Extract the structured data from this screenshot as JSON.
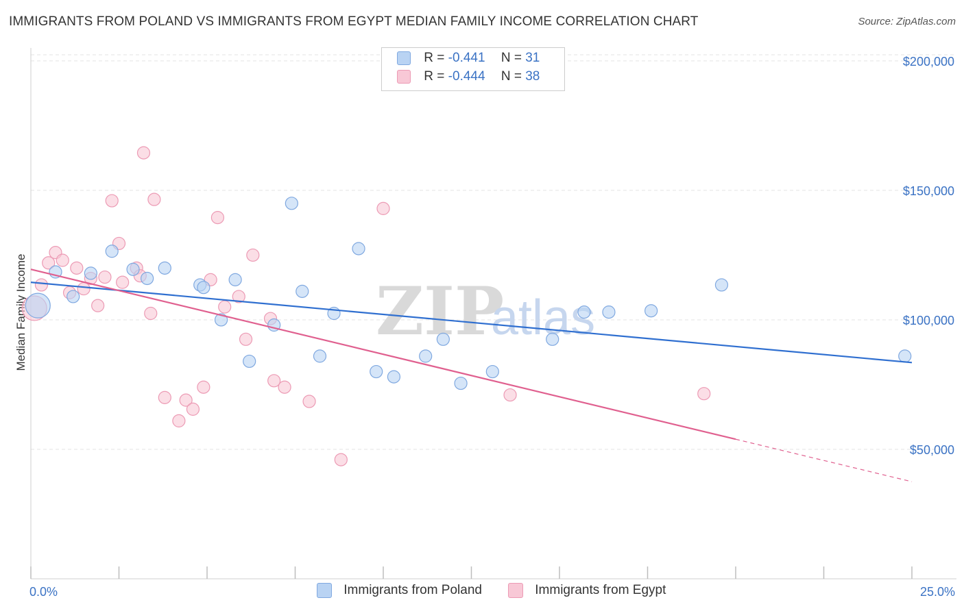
{
  "title": "IMMIGRANTS FROM POLAND VS IMMIGRANTS FROM EGYPT MEDIAN FAMILY INCOME CORRELATION CHART",
  "source": "Source: ZipAtlas.com",
  "watermark": {
    "zip": "ZIP",
    "atlas": "atlas"
  },
  "colors": {
    "poland_fill": "#b9d3f3",
    "poland_stroke": "#7fa8e0",
    "poland_line": "#2f6fd0",
    "egypt_fill": "#f8c8d6",
    "egypt_stroke": "#ec9ab4",
    "egypt_line": "#e0608f",
    "grid": "#e3e3e3",
    "tick_text": "#3a72c4"
  },
  "legend": {
    "rows": [
      {
        "r_label": "R =",
        "r_value": "-0.441",
        "n_label": "N =",
        "n_value": "31"
      },
      {
        "r_label": "R =",
        "r_value": "-0.444",
        "n_label": "N =",
        "n_value": "38"
      }
    ]
  },
  "chart_data": {
    "type": "scatter",
    "title": "IMMIGRANTS FROM POLAND VS IMMIGRANTS FROM EGYPT MEDIAN FAMILY INCOME CORRELATION CHART",
    "xlabel": "",
    "ylabel": "Median Family Income",
    "xlim": [
      0,
      25
    ],
    "ylim": [
      0,
      205000
    ],
    "x_tick_labels": [
      "0.0%",
      "25.0%"
    ],
    "y_ticks": [
      50000,
      100000,
      150000,
      200000
    ],
    "y_tick_labels": [
      "$50,000",
      "$100,000",
      "$150,000",
      "$200,000"
    ],
    "series": [
      {
        "name": "Immigrants from Poland",
        "r": -0.441,
        "n": 31,
        "trend": {
          "x": [
            0,
            25
          ],
          "y": [
            114500,
            83500
          ],
          "dashed_from": null
        },
        "points": [
          {
            "x": 0.2,
            "y": 105500,
            "big": true
          },
          {
            "x": 0.7,
            "y": 118500
          },
          {
            "x": 1.2,
            "y": 109000
          },
          {
            "x": 1.7,
            "y": 118000
          },
          {
            "x": 2.3,
            "y": 126500
          },
          {
            "x": 2.9,
            "y": 119500
          },
          {
            "x": 3.3,
            "y": 116000
          },
          {
            "x": 3.8,
            "y": 120000
          },
          {
            "x": 4.8,
            "y": 113500
          },
          {
            "x": 4.9,
            "y": 112500
          },
          {
            "x": 5.4,
            "y": 100000
          },
          {
            "x": 5.8,
            "y": 115500
          },
          {
            "x": 6.2,
            "y": 84000
          },
          {
            "x": 6.9,
            "y": 98000
          },
          {
            "x": 7.4,
            "y": 145000
          },
          {
            "x": 7.7,
            "y": 111000
          },
          {
            "x": 8.2,
            "y": 86000
          },
          {
            "x": 8.6,
            "y": 102500
          },
          {
            "x": 9.3,
            "y": 127500
          },
          {
            "x": 9.8,
            "y": 80000
          },
          {
            "x": 10.3,
            "y": 78000
          },
          {
            "x": 11.2,
            "y": 86000
          },
          {
            "x": 11.7,
            "y": 92500
          },
          {
            "x": 12.2,
            "y": 75500
          },
          {
            "x": 13.1,
            "y": 80000
          },
          {
            "x": 14.8,
            "y": 92500
          },
          {
            "x": 15.7,
            "y": 103000
          },
          {
            "x": 16.4,
            "y": 103000
          },
          {
            "x": 17.6,
            "y": 103500
          },
          {
            "x": 19.6,
            "y": 113500
          },
          {
            "x": 24.8,
            "y": 86000
          }
        ]
      },
      {
        "name": "Immigrants from Egypt",
        "r": -0.444,
        "n": 38,
        "trend": {
          "x": [
            0,
            25
          ],
          "y": [
            119500,
            37500
          ],
          "dashed_from": 20
        },
        "points": [
          {
            "x": 0.1,
            "y": 104500,
            "big": true
          },
          {
            "x": 0.3,
            "y": 113500
          },
          {
            "x": 0.5,
            "y": 122000
          },
          {
            "x": 0.7,
            "y": 126000
          },
          {
            "x": 0.9,
            "y": 123000
          },
          {
            "x": 1.1,
            "y": 110500
          },
          {
            "x": 1.3,
            "y": 120000
          },
          {
            "x": 1.5,
            "y": 112000
          },
          {
            "x": 1.7,
            "y": 116000
          },
          {
            "x": 1.9,
            "y": 105500
          },
          {
            "x": 2.1,
            "y": 116500
          },
          {
            "x": 2.3,
            "y": 146000
          },
          {
            "x": 2.5,
            "y": 129500
          },
          {
            "x": 2.6,
            "y": 114500
          },
          {
            "x": 3.0,
            "y": 120000
          },
          {
            "x": 3.1,
            "y": 117000
          },
          {
            "x": 3.2,
            "y": 164500
          },
          {
            "x": 3.4,
            "y": 102500
          },
          {
            "x": 3.5,
            "y": 146500
          },
          {
            "x": 3.8,
            "y": 70000
          },
          {
            "x": 4.2,
            "y": 61000
          },
          {
            "x": 4.4,
            "y": 69000
          },
          {
            "x": 4.6,
            "y": 65500
          },
          {
            "x": 4.9,
            "y": 74000
          },
          {
            "x": 5.1,
            "y": 115500
          },
          {
            "x": 5.3,
            "y": 139500
          },
          {
            "x": 5.5,
            "y": 105000
          },
          {
            "x": 5.9,
            "y": 109000
          },
          {
            "x": 6.1,
            "y": 92500
          },
          {
            "x": 6.3,
            "y": 125000
          },
          {
            "x": 6.8,
            "y": 100500
          },
          {
            "x": 6.9,
            "y": 76500
          },
          {
            "x": 7.2,
            "y": 74000
          },
          {
            "x": 7.9,
            "y": 68500
          },
          {
            "x": 8.8,
            "y": 46000
          },
          {
            "x": 10.0,
            "y": 143000
          },
          {
            "x": 13.6,
            "y": 71000
          },
          {
            "x": 19.1,
            "y": 71500
          }
        ]
      }
    ]
  }
}
